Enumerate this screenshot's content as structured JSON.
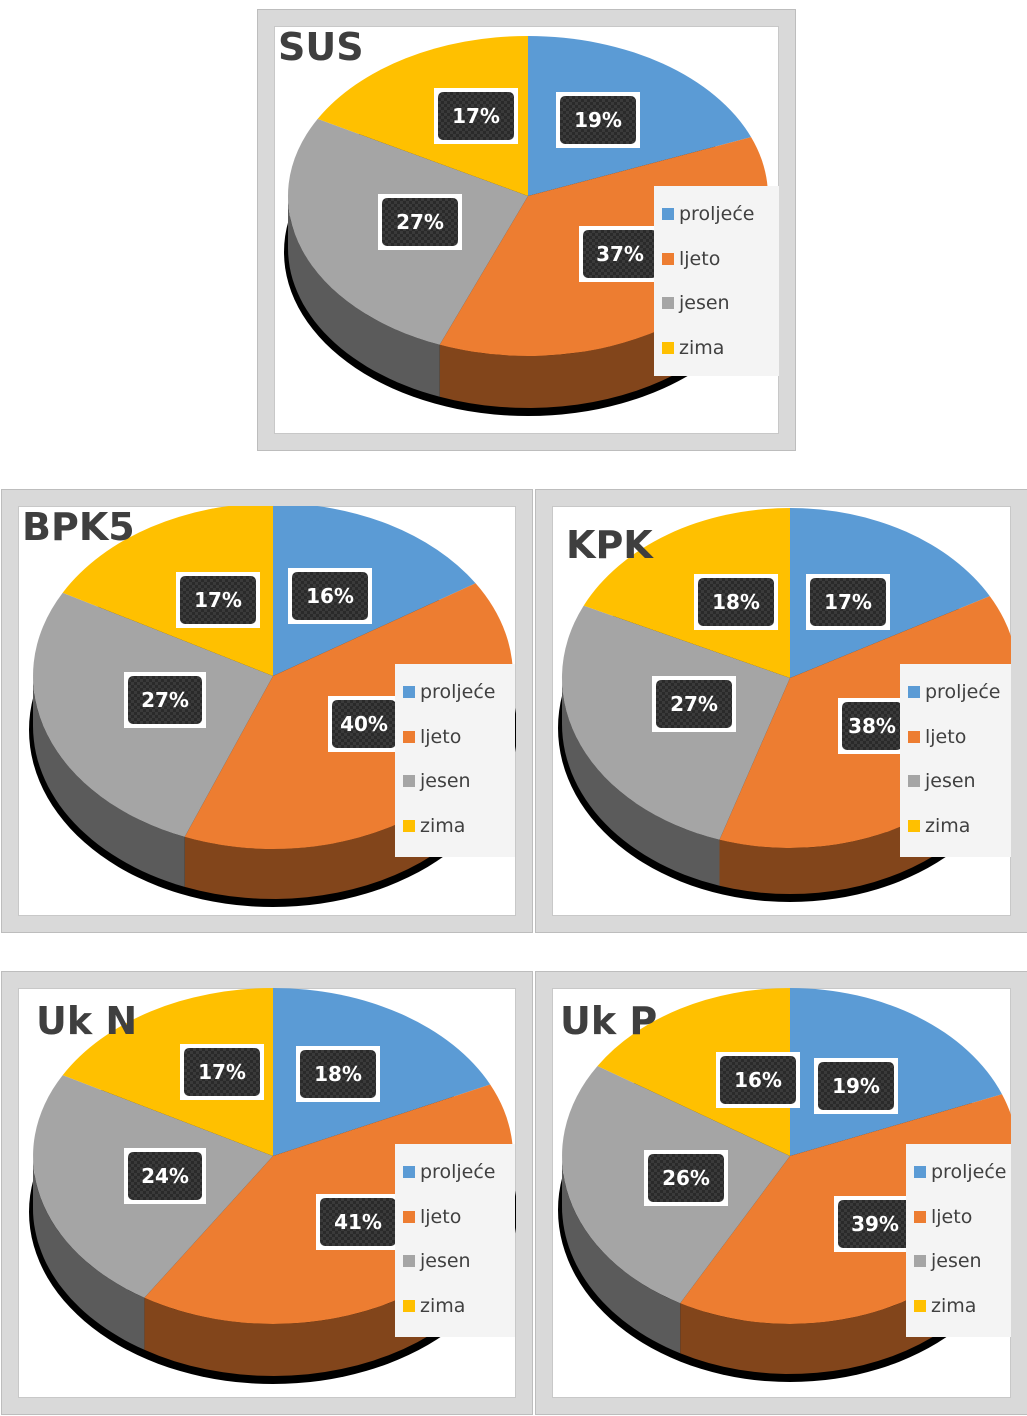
{
  "legend_labels": [
    "proljeće",
    "ljeto",
    "jesen",
    "zima"
  ],
  "colors": {
    "proljeće": "#5b9bd5",
    "ljeto": "#ed7d31",
    "jesen": "#a5a5a5",
    "zima": "#ffc000"
  },
  "chart_data": [
    {
      "type": "pie",
      "title": "SUS",
      "categories": [
        "proljeće",
        "ljeto",
        "jesen",
        "zima"
      ],
      "values": [
        19,
        37,
        27,
        17
      ],
      "value_labels": [
        "19%",
        "37%",
        "27%",
        "17%"
      ],
      "legend_position": "right"
    },
    {
      "type": "pie",
      "title": "BPK5",
      "categories": [
        "proljeće",
        "ljeto",
        "jesen",
        "zima"
      ],
      "values": [
        16,
        40,
        27,
        17
      ],
      "value_labels": [
        "16%",
        "40%",
        "27%",
        "17%"
      ],
      "legend_position": "right"
    },
    {
      "type": "pie",
      "title": "KPK",
      "categories": [
        "proljeće",
        "ljeto",
        "jesen",
        "zima"
      ],
      "values": [
        17,
        38,
        27,
        18
      ],
      "value_labels": [
        "17%",
        "38%",
        "27%",
        "18%"
      ],
      "legend_position": "right"
    },
    {
      "type": "pie",
      "title": "Uk N",
      "categories": [
        "proljeće",
        "ljeto",
        "jesen",
        "zima"
      ],
      "values": [
        18,
        41,
        24,
        17
      ],
      "value_labels": [
        "18%",
        "41%",
        "24%",
        "17%"
      ],
      "legend_position": "right"
    },
    {
      "type": "pie",
      "title": "Uk P",
      "categories": [
        "proljeće",
        "ljeto",
        "jesen",
        "zima"
      ],
      "values": [
        19,
        39,
        26,
        16
      ],
      "value_labels": [
        "19%",
        "39%",
        "26%",
        "16%"
      ],
      "legend_position": "right"
    }
  ]
}
